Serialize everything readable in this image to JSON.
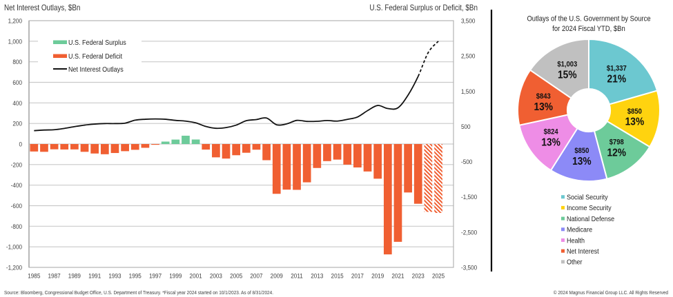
{
  "chart_data": [
    {
      "type": "bar",
      "title": "",
      "ylabel_left": "Net Interest Outlays, $Bn",
      "ylabel_right": "U.S. Federal Surplus or Deficit, $Bn",
      "xlabel": "",
      "ylim_left": [
        -1200,
        1200
      ],
      "ylim_right": [
        -3500,
        3500
      ],
      "yticks_left": [
        1200,
        1000,
        800,
        600,
        400,
        200,
        0,
        -200,
        -400,
        -600,
        -800,
        -1000,
        -1200
      ],
      "ytick_labels_left": [
        "1,200",
        "1,000",
        "800",
        "600",
        "400",
        "200",
        "0",
        "-200",
        "-400",
        "-600",
        "-800",
        "-1,000",
        "-1,200"
      ],
      "yticks_right": [
        3500,
        2500,
        1500,
        500,
        -500,
        -1500,
        -2500,
        -3500
      ],
      "ytick_labels_right": [
        "3,500",
        "2,500",
        "1,500",
        "500",
        "-500",
        "-1,500",
        "-2,500",
        "-3,500"
      ],
      "x": [
        1985,
        1986,
        1987,
        1988,
        1989,
        1990,
        1991,
        1992,
        1993,
        1994,
        1995,
        1996,
        1997,
        1998,
        1999,
        2000,
        2001,
        2002,
        2003,
        2004,
        2005,
        2006,
        2007,
        2008,
        2009,
        2010,
        2011,
        2012,
        2013,
        2014,
        2015,
        2016,
        2017,
        2018,
        2019,
        2020,
        2021,
        2022,
        2023,
        2024,
        2025
      ],
      "xtick_labels": [
        "1985",
        "1987",
        "1989",
        "1991",
        "1993",
        "1995",
        "1997",
        "1999",
        "2001",
        "2003",
        "2005",
        "2007",
        "2009",
        "2011",
        "2013",
        "2015",
        "2017",
        "2019",
        "2021",
        "2023",
        "2025"
      ],
      "grid": true,
      "projected_years": [
        2024,
        2025
      ],
      "legend": {
        "placement": "top-left",
        "entries": [
          {
            "label": "U.S. Federal Surplus",
            "kind": "bar",
            "color": "#6DCB9A"
          },
          {
            "label": "U.S. Federal Deficit",
            "kind": "bar",
            "color": "#F05F32"
          },
          {
            "label": "Net Interest Outlays",
            "kind": "line",
            "color": "#111111"
          }
        ]
      },
      "series": [
        {
          "name": "U.S. Federal Surplus / Deficit",
          "type": "bar",
          "axis": "right",
          "positive_color": "#6DCB9A",
          "negative_color": "#F05F32",
          "values": [
            -212,
            -221,
            -150,
            -155,
            -153,
            -221,
            -269,
            -290,
            -255,
            -203,
            -164,
            -107,
            -22,
            69,
            126,
            236,
            128,
            -158,
            -378,
            -413,
            -318,
            -248,
            -161,
            -459,
            -1413,
            -1294,
            -1300,
            -1087,
            -680,
            -485,
            -442,
            -585,
            -665,
            -779,
            -984,
            -3132,
            -2775,
            -1375,
            -1695,
            -1925,
            -1955
          ]
        },
        {
          "name": "Net Interest Outlays",
          "type": "line",
          "axis": "left",
          "color": "#111111",
          "values": [
            130,
            136,
            139,
            152,
            169,
            184,
            194,
            199,
            199,
            203,
            232,
            241,
            244,
            241,
            230,
            223,
            206,
            171,
            153,
            160,
            184,
            227,
            238,
            253,
            187,
            196,
            230,
            220,
            221,
            229,
            223,
            240,
            263,
            325,
            375,
            345,
            352,
            475,
            658,
            890,
            1000
          ]
        }
      ]
    },
    {
      "type": "pie",
      "donut": true,
      "title_lines": [
        "Outlays of the U.S. Government by Source",
        "for 2024 Fiscal YTD, $Bn"
      ],
      "categories": [
        "Social Security",
        "Income Security",
        "National Defense",
        "Medicare",
        "Health",
        "Net Interest",
        "Other"
      ],
      "values": [
        1337,
        850,
        798,
        850,
        824,
        843,
        1003
      ],
      "value_labels": [
        "$1,337",
        "$850",
        "$798",
        "$850",
        "$824",
        "$843",
        "$1,003"
      ],
      "percent_labels": [
        "21%",
        "13%",
        "12%",
        "13%",
        "13%",
        "13%",
        "15%"
      ],
      "colors": [
        "#6CC8D0",
        "#FFD30F",
        "#6DCB9A",
        "#8C8AF7",
        "#EE8DE6",
        "#F05F32",
        "#C0C0C0"
      ],
      "legend_placement": "bottom"
    }
  ],
  "footer": {
    "source": "Source: Bloomberg, Congressional Budget Office, U.S. Department of Treasury. *Fiscal year 2024 started on 10/1/2023. As of 8/31/2024.",
    "copyright": "© 2024 Magnus Financial Group LLC. All Rights Reserved"
  }
}
